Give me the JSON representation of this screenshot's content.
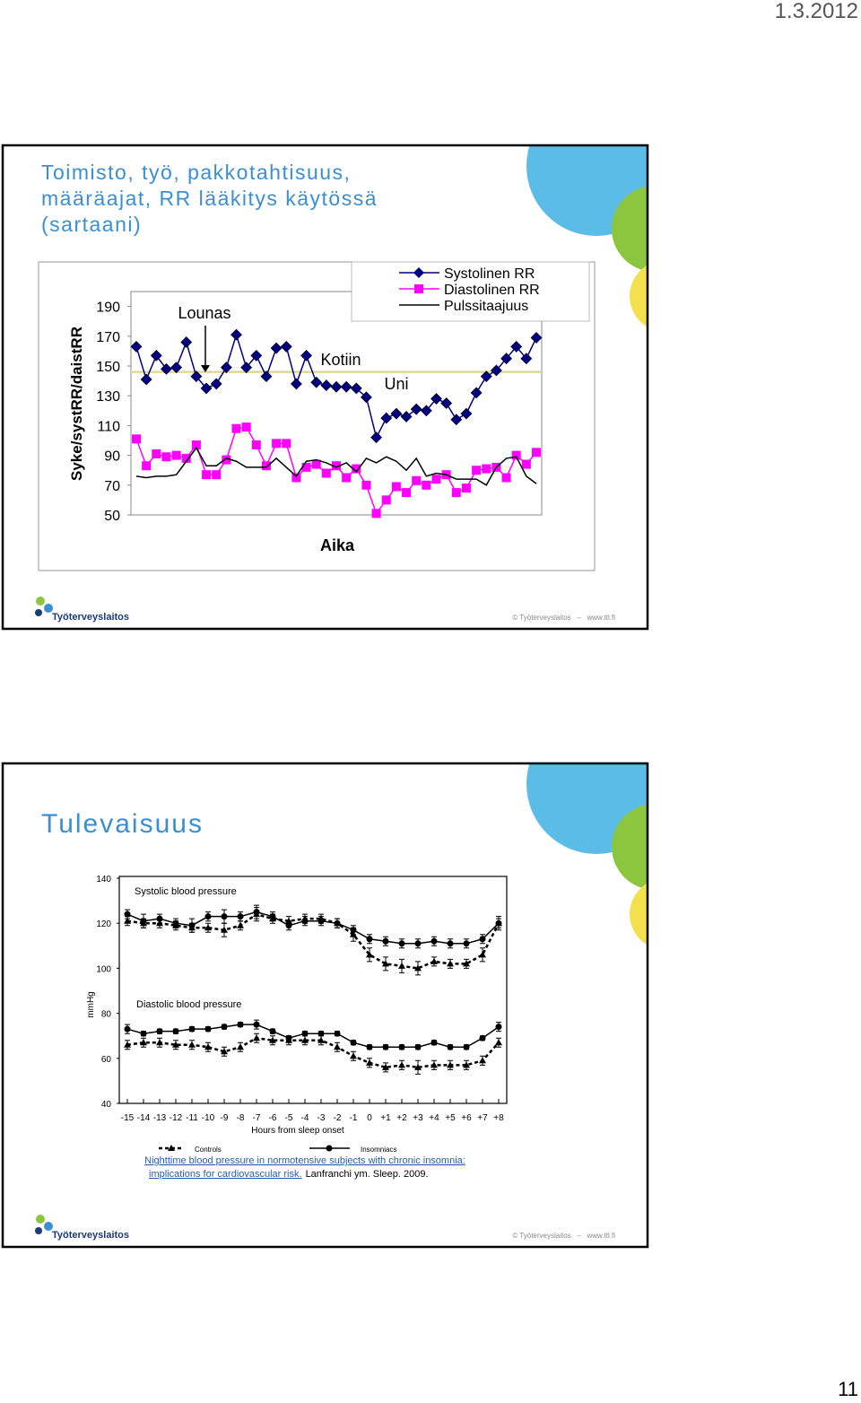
{
  "header": {
    "date": "1.3.2012"
  },
  "slides": [
    {
      "title_lines": [
        "Toimisto, työ, pakkotahtisuus,",
        "määräajat, RR lääkitys käytössä",
        "(sartaani)"
      ],
      "footer": {
        "logo": "Työterveyslaitos",
        "source": "© Työterveyslaitos   –   www.ttl.fi"
      }
    },
    {
      "title": "Tulevaisuus",
      "caption": {
        "link_lines": [
          "Nighttime blood pressure in normotensive subjects with chronic insomnia:",
          "implications for cardiovascular risk."
        ],
        "citation": "Lanfranchi ym. Sleep. 2009."
      },
      "footer": {
        "logo": "Työterveyslaitos",
        "source": "© Työterveyslaitos   –   www.ttl.fi"
      }
    }
  ],
  "chart_data": [
    {
      "type": "line",
      "y_label": "Syke/systRR/daistRR",
      "x_label": "Aika",
      "ylim": [
        50,
        200
      ],
      "yticks": [
        50,
        70,
        90,
        110,
        130,
        150,
        170,
        190
      ],
      "reference_line": {
        "value": 146,
        "color": "#dcd89c"
      },
      "annotations": [
        "Lounas",
        "Kotiin",
        "Uni"
      ],
      "legend": "top-right",
      "series": [
        {
          "name": "Systolinen RR",
          "color": "#000080",
          "marker": "diamond",
          "values": [
            163,
            141,
            157,
            148,
            149,
            166,
            143,
            135,
            138,
            149,
            171,
            149,
            157,
            143,
            162,
            163,
            138,
            157,
            139,
            137,
            136,
            136,
            135,
            129,
            102,
            115,
            118,
            116,
            121,
            120,
            128,
            125,
            114,
            118,
            132,
            143,
            147,
            155,
            163,
            155,
            169
          ]
        },
        {
          "name": "Diastolinen RR",
          "color": "#ff00ff",
          "marker": "square",
          "values": [
            101,
            83,
            91,
            89,
            90,
            88,
            97,
            77,
            77,
            87,
            108,
            109,
            97,
            83,
            98,
            98,
            75,
            82,
            84,
            78,
            83,
            75,
            81,
            70,
            51,
            60,
            69,
            65,
            73,
            70,
            74,
            77,
            65,
            68,
            80,
            81,
            82,
            75,
            90,
            84,
            92
          ]
        },
        {
          "name": "Pulssitaajuus",
          "color": "#000000",
          "marker": null,
          "values": [
            76,
            75,
            76,
            76,
            77,
            86,
            95,
            83,
            83,
            88,
            86,
            82,
            82,
            82,
            88,
            82,
            76,
            86,
            87,
            85,
            82,
            85,
            79,
            88,
            85,
            89,
            86,
            80,
            88,
            76,
            78,
            77,
            74,
            74,
            74,
            70,
            82,
            88,
            89,
            76,
            71
          ]
        }
      ]
    },
    {
      "type": "line",
      "y_label": "mmHg",
      "x_label": "Hours from sleep onset",
      "panels": {
        "systolic": "Systolic blood pressure",
        "diastolic": "Diastolic blood pressure"
      },
      "x": [
        -15,
        -14,
        -13,
        -12,
        -11,
        -10,
        -9,
        -8,
        -7,
        -6,
        -5,
        -4,
        -3,
        -2,
        -1,
        0,
        1,
        2,
        3,
        4,
        5,
        6,
        7,
        8
      ],
      "xlim": [
        -15.5,
        8.5
      ],
      "xticks": [
        -15,
        -14,
        -13,
        -12,
        -11,
        -10,
        -9,
        -8,
        -7,
        -6,
        -5,
        -4,
        -3,
        -2,
        -1,
        0,
        {
          "value": 1,
          "label": "+1"
        },
        {
          "value": 2,
          "label": "+2"
        },
        {
          "value": 3,
          "label": "+3"
        },
        {
          "value": 4,
          "label": "+4"
        },
        {
          "value": 5,
          "label": "+5"
        },
        {
          "value": 6,
          "label": "+6"
        },
        {
          "value": 7,
          "label": "+7"
        },
        {
          "value": 8,
          "label": "+8"
        }
      ],
      "ylim": [
        40,
        140
      ],
      "yticks": [
        40,
        60,
        80,
        100,
        120,
        140
      ],
      "series": [
        {
          "name": "Controls",
          "color": "#000000",
          "dashed": true,
          "marker": "triangle",
          "systolic": [
            121,
            120,
            120,
            119,
            118,
            118,
            117,
            119,
            124,
            122,
            121,
            122,
            122,
            120,
            115,
            106,
            102,
            101,
            100,
            103,
            102,
            102,
            106,
            120
          ],
          "systolic_errors": [
            2,
            2,
            2,
            2,
            2,
            2,
            3,
            2,
            3,
            2,
            2,
            2,
            2,
            2,
            3,
            3,
            3,
            3,
            3,
            2,
            2,
            2,
            3,
            2
          ],
          "diastolic": [
            66,
            67,
            67,
            66,
            66,
            65,
            63,
            65,
            69,
            68,
            68,
            68,
            68,
            65,
            61,
            58,
            56,
            57,
            56,
            57,
            57,
            57,
            59,
            67
          ],
          "diastolic_errors": [
            2,
            2,
            2,
            2,
            2,
            2,
            2,
            2,
            2,
            2,
            2,
            2,
            2,
            2,
            2,
            2,
            2,
            2,
            3,
            2,
            2,
            2,
            2,
            2
          ]
        },
        {
          "name": "Insomniacs",
          "color": "#000000",
          "dashed": false,
          "marker": "circle",
          "systolic": [
            124,
            121,
            122,
            120,
            119,
            123,
            123,
            123,
            125,
            123,
            119,
            121,
            121,
            120,
            117,
            113,
            112,
            111,
            111,
            112,
            111,
            111,
            113,
            120
          ],
          "systolic_errors": [
            2,
            3,
            2,
            2,
            3,
            2,
            3,
            2,
            3,
            2,
            2,
            2,
            2,
            2,
            2,
            2,
            2,
            2,
            2,
            2,
            2,
            2,
            2,
            3
          ],
          "diastolic": [
            73,
            71,
            72,
            72,
            73,
            73,
            74,
            75,
            75,
            72,
            69,
            71,
            71,
            71,
            67,
            65,
            65,
            65,
            65,
            67,
            65,
            65,
            69,
            74
          ],
          "diastolic_errors": [
            2,
            1,
            1,
            1,
            1,
            1,
            1,
            1,
            2,
            1,
            1,
            1,
            1,
            1,
            1,
            1,
            1,
            1,
            1,
            1,
            1,
            1,
            1,
            2
          ]
        }
      ]
    }
  ],
  "page_number": "11"
}
